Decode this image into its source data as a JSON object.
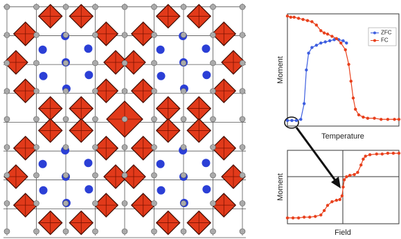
{
  "chart_data": [
    {
      "type": "line",
      "x_label": "Temperature",
      "y_label": "Moment",
      "xlim": [
        0,
        1
      ],
      "ylim": [
        0,
        1
      ],
      "legend": "upper right",
      "series": [
        {
          "name": "ZFC",
          "color": "#3d5ee0",
          "x": [
            0,
            0.04,
            0.08,
            0.12,
            0.15,
            0.17,
            0.19,
            0.22,
            0.26,
            0.3,
            0.34,
            0.38,
            0.42,
            0.46,
            0.5,
            0.53
          ],
          "values": [
            0.05,
            0.05,
            0.05,
            0.06,
            0.2,
            0.5,
            0.65,
            0.7,
            0.72,
            0.74,
            0.75,
            0.76,
            0.77,
            0.77,
            0.76,
            0.74
          ]
        },
        {
          "name": "FC",
          "color": "#e8401c",
          "x": [
            0,
            0.03,
            0.06,
            0.1,
            0.14,
            0.18,
            0.22,
            0.26,
            0.3,
            0.33,
            0.36,
            0.4,
            0.44,
            0.48,
            0.52,
            0.55,
            0.57,
            0.59,
            0.61,
            0.64,
            0.68,
            0.72,
            0.78,
            0.84,
            0.9,
            0.96,
            1
          ],
          "values": [
            0.98,
            0.97,
            0.97,
            0.96,
            0.95,
            0.94,
            0.93,
            0.9,
            0.85,
            0.83,
            0.82,
            0.8,
            0.78,
            0.74,
            0.68,
            0.55,
            0.4,
            0.25,
            0.15,
            0.1,
            0.08,
            0.07,
            0.07,
            0.06,
            0.06,
            0.06,
            0.06
          ]
        }
      ]
    },
    {
      "type": "line",
      "x_label": "Field",
      "y_label": "Moment",
      "xlim": [
        0,
        1
      ],
      "ylim": [
        0,
        1
      ],
      "series": [
        {
          "color": "#e8401c",
          "x": [
            0,
            0.05,
            0.1,
            0.15,
            0.2,
            0.25,
            0.3,
            0.33,
            0.36,
            0.4,
            0.44,
            0.47,
            0.49,
            0.5,
            0.51,
            0.53,
            0.56,
            0.6,
            0.63,
            0.66,
            0.68,
            0.7,
            0.74,
            0.8,
            0.85,
            0.9,
            0.95,
            1
          ],
          "values": [
            0.08,
            0.08,
            0.08,
            0.09,
            0.09,
            0.1,
            0.12,
            0.18,
            0.25,
            0.3,
            0.32,
            0.33,
            0.38,
            0.5,
            0.6,
            0.64,
            0.66,
            0.67,
            0.7,
            0.8,
            0.88,
            0.92,
            0.94,
            0.95,
            0.95,
            0.96,
            0.96,
            0.96
          ]
        }
      ]
    }
  ]
}
